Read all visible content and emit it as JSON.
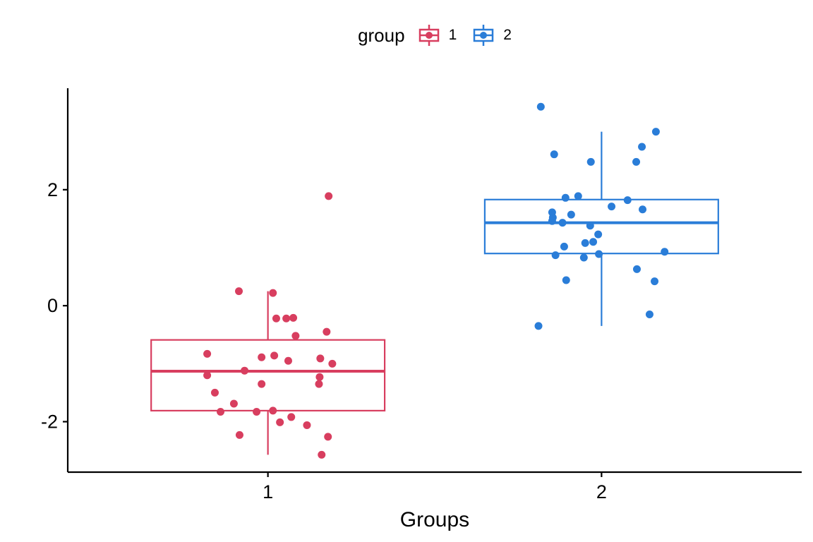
{
  "legend": {
    "title": "group",
    "entries": [
      {
        "label": "1",
        "color": "#D83E5F"
      },
      {
        "label": "2",
        "color": "#2A7DD8"
      }
    ]
  },
  "chart_data": {
    "type": "boxplot",
    "subtype": "boxplot-with-jittered-points",
    "title": "",
    "xlabel": "Groups",
    "ylabel": "",
    "grid": false,
    "legend_position": "top",
    "x_domain": [
      0.4,
      2.6
    ],
    "y_domain": [
      -2.87,
      3.75
    ],
    "x_ticks": [
      {
        "pos": 1,
        "label": "1"
      },
      {
        "pos": 2,
        "label": "2"
      }
    ],
    "y_ticks": [
      {
        "value": 2,
        "label": "2"
      },
      {
        "value": 0,
        "label": "0"
      },
      {
        "value": -2,
        "label": "-2"
      }
    ],
    "box_halfwidth": 0.35,
    "groups": [
      {
        "name": "1",
        "color": "#D83E5F",
        "x": 1,
        "box": {
          "whisker_low": -2.57,
          "q1": -1.81,
          "median": -1.13,
          "q3": -0.59,
          "whisker_high": 0.25
        },
        "points": [
          [
            0.913,
            0.25
          ],
          [
            1.015,
            0.22
          ],
          [
            1.182,
            1.89
          ],
          [
            1.025,
            -0.22
          ],
          [
            1.055,
            -0.22
          ],
          [
            1.076,
            -0.21
          ],
          [
            1.083,
            -0.52
          ],
          [
            1.176,
            -0.45
          ],
          [
            0.818,
            -0.83
          ],
          [
            0.981,
            -0.89
          ],
          [
            1.019,
            -0.86
          ],
          [
            1.061,
            -0.95
          ],
          [
            1.157,
            -0.91
          ],
          [
            1.193,
            -1.0
          ],
          [
            0.93,
            -1.12
          ],
          [
            0.818,
            -1.2
          ],
          [
            0.981,
            -1.35
          ],
          [
            1.155,
            -1.23
          ],
          [
            1.153,
            -1.35
          ],
          [
            0.841,
            -1.5
          ],
          [
            0.898,
            -1.69
          ],
          [
            0.858,
            -1.83
          ],
          [
            0.966,
            -1.83
          ],
          [
            1.015,
            -1.81
          ],
          [
            1.036,
            -2.01
          ],
          [
            1.07,
            -1.92
          ],
          [
            1.117,
            -2.06
          ],
          [
            0.915,
            -2.23
          ],
          [
            1.18,
            -2.26
          ],
          [
            1.161,
            -2.57
          ]
        ]
      },
      {
        "name": "2",
        "color": "#2A7DD8",
        "x": 2,
        "box": {
          "whisker_low": -0.35,
          "q1": 0.9,
          "median": 1.43,
          "q3": 1.83,
          "whisker_high": 3.0
        },
        "points": [
          [
            1.818,
            3.43
          ],
          [
            2.163,
            3.0
          ],
          [
            2.121,
            2.74
          ],
          [
            1.858,
            2.61
          ],
          [
            2.104,
            2.48
          ],
          [
            1.968,
            2.48
          ],
          [
            1.892,
            1.86
          ],
          [
            1.93,
            1.89
          ],
          [
            2.078,
            1.82
          ],
          [
            2.03,
            1.71
          ],
          [
            2.123,
            1.66
          ],
          [
            1.852,
            1.61
          ],
          [
            1.854,
            1.52
          ],
          [
            1.909,
            1.57
          ],
          [
            1.883,
            1.43
          ],
          [
            1.852,
            1.46
          ],
          [
            1.966,
            1.38
          ],
          [
            1.99,
            1.23
          ],
          [
            1.951,
            1.08
          ],
          [
            1.975,
            1.1
          ],
          [
            1.888,
            1.02
          ],
          [
            2.189,
            0.93
          ],
          [
            1.862,
            0.87
          ],
          [
            1.947,
            0.83
          ],
          [
            1.992,
            0.89
          ],
          [
            2.106,
            0.63
          ],
          [
            1.894,
            0.44
          ],
          [
            2.159,
            0.42
          ],
          [
            2.144,
            -0.15
          ],
          [
            1.811,
            -0.35
          ]
        ]
      }
    ],
    "style": {
      "axis_color": "#000000",
      "text_color": "#000000",
      "box_fill": "#ffffff",
      "point_radius": 5.5,
      "tick_label_size": 27,
      "axis_title_size": 30
    }
  }
}
